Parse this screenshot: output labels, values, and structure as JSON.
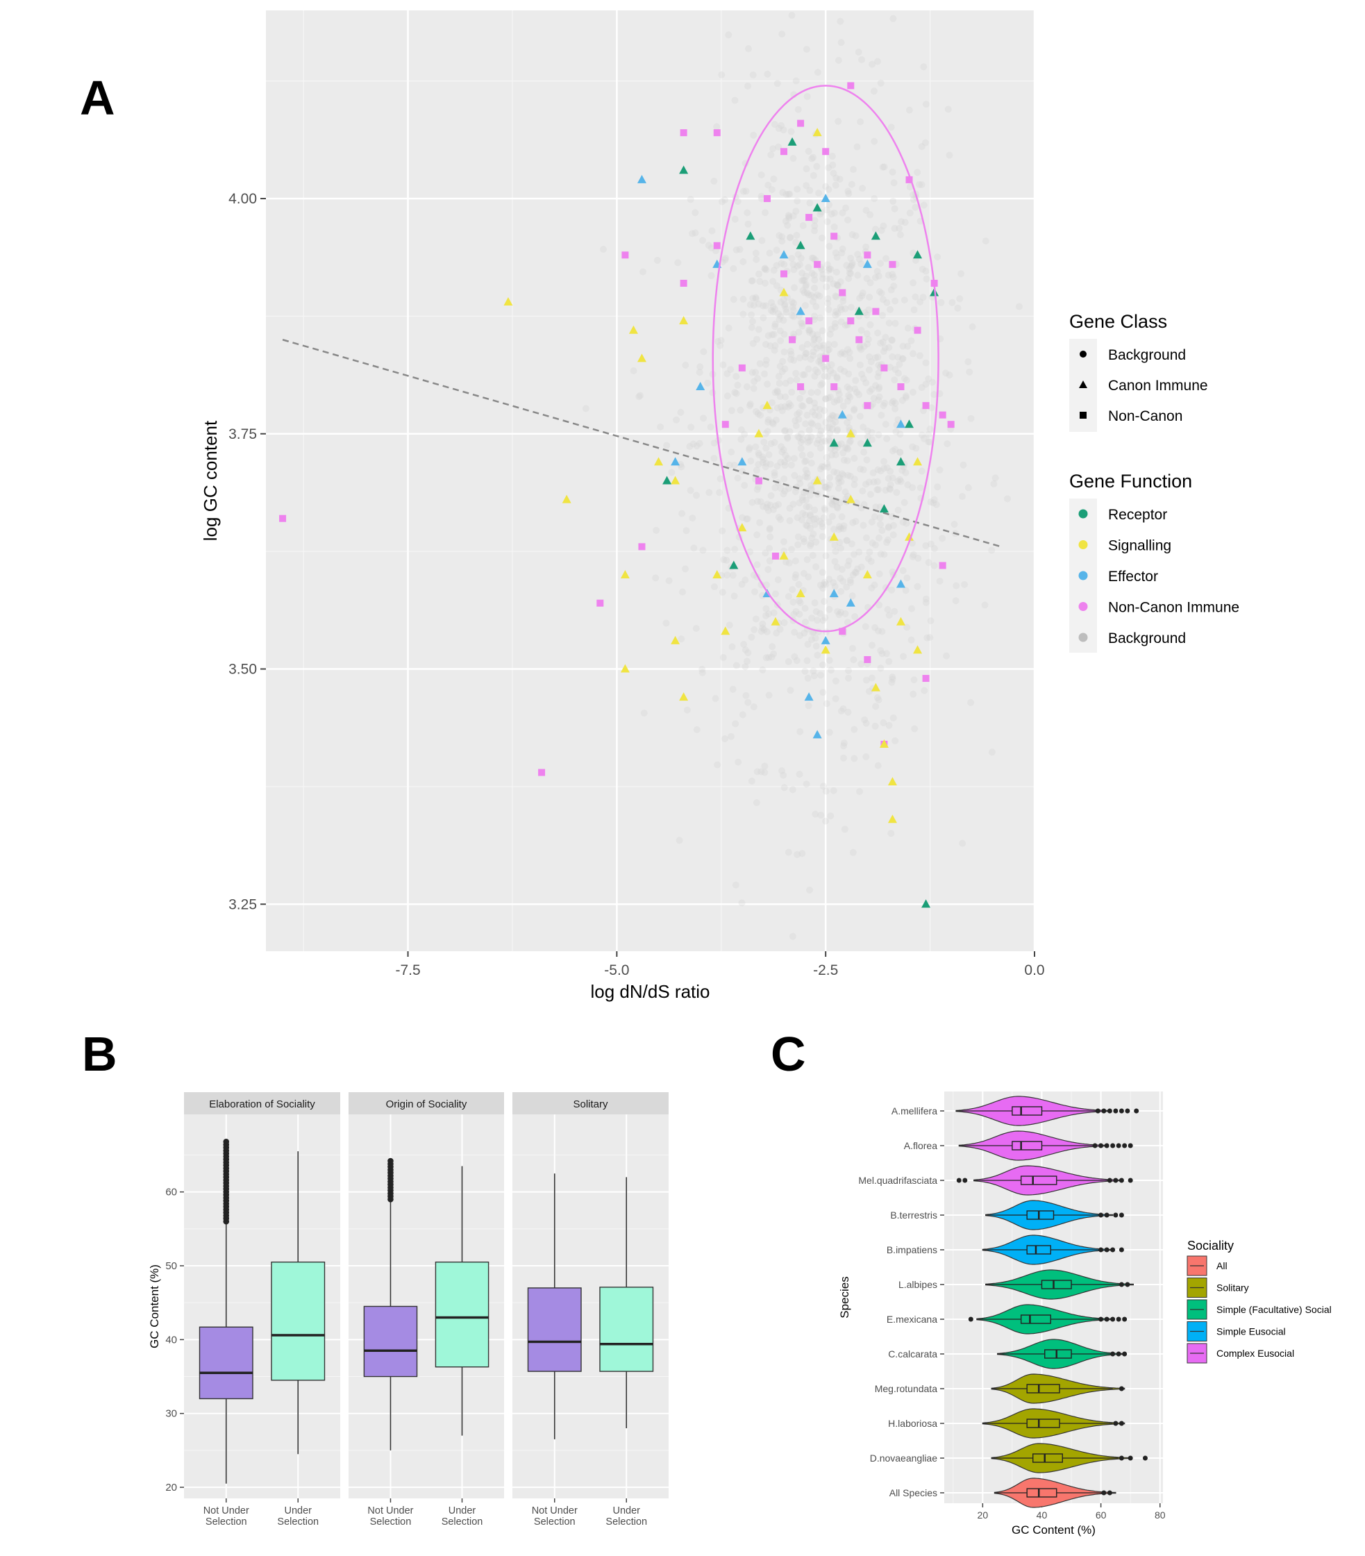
{
  "panels": {
    "A": {
      "letter": "A"
    },
    "B": {
      "letter": "B"
    },
    "C": {
      "letter": "C"
    }
  },
  "chart_data": [
    {
      "id": "A",
      "type": "scatter",
      "title": "",
      "xlabel": "log dN/dS ratio",
      "ylabel": "log GC content",
      "xlim": [
        -9.2,
        0.0
      ],
      "ylim": [
        3.2,
        4.2
      ],
      "x_ticks": [
        -7.5,
        -5.0,
        -2.5,
        0.0
      ],
      "x_tick_labels": [
        "-7.5",
        "-5.0",
        "-2.5",
        "0.0"
      ],
      "y_ticks": [
        3.25,
        3.5,
        3.75,
        4.0
      ],
      "y_tick_labels": [
        "3.25",
        "3.50",
        "3.75",
        "4.00"
      ],
      "grid": true,
      "legend_position": "right",
      "legends": [
        {
          "title": "Gene Class",
          "entries": [
            {
              "label": "Background",
              "shape": "circle"
            },
            {
              "label": "Canon Immune",
              "shape": "triangle"
            },
            {
              "label": "Non-Canon",
              "shape": "square"
            }
          ]
        },
        {
          "title": "Gene Function",
          "entries": [
            {
              "label": "Receptor",
              "color": "#1b9e77"
            },
            {
              "label": "Signalling",
              "color": "#f0e442"
            },
            {
              "label": "Effector",
              "color": "#56b4e9"
            },
            {
              "label": "Non-Canon Immune",
              "color": "#ee82ee"
            },
            {
              "label": "Background",
              "color": "#bdbdbd"
            }
          ]
        }
      ],
      "trend_line": {
        "style": "dashed",
        "x": [
          -9.0,
          -0.4
        ],
        "y": [
          3.85,
          3.63
        ]
      },
      "ellipse": {
        "center": [
          -2.5,
          3.83
        ],
        "semi_axis_x": 1.35,
        "semi_axis_y": 0.29,
        "color": "#ee82ee"
      },
      "background_cloud": {
        "center": [
          -2.55,
          3.75
        ],
        "spread": [
          0.75,
          0.17
        ],
        "count": 1400
      },
      "series": [
        {
          "class": "Non-Canon",
          "function": "Non-Canon Immune",
          "points": [
            [
              -9.0,
              3.66
            ],
            [
              -5.9,
              3.39
            ],
            [
              -5.2,
              3.57
            ],
            [
              -4.9,
              3.94
            ],
            [
              -4.7,
              3.63
            ],
            [
              -4.2,
              4.07
            ],
            [
              -4.2,
              3.91
            ],
            [
              -3.8,
              4.07
            ],
            [
              -3.8,
              3.95
            ],
            [
              -3.7,
              3.76
            ],
            [
              -3.5,
              3.82
            ],
            [
              -3.2,
              4.0
            ],
            [
              -3.0,
              4.05
            ],
            [
              -3.0,
              3.92
            ],
            [
              -2.9,
              3.85
            ],
            [
              -2.8,
              4.08
            ],
            [
              -2.7,
              3.98
            ],
            [
              -2.7,
              3.87
            ],
            [
              -2.6,
              3.93
            ],
            [
              -2.5,
              4.05
            ],
            [
              -2.5,
              3.83
            ],
            [
              -2.4,
              3.96
            ],
            [
              -2.3,
              3.9
            ],
            [
              -2.2,
              3.87
            ],
            [
              -2.2,
              4.12
            ],
            [
              -2.1,
              3.85
            ],
            [
              -2.0,
              3.94
            ],
            [
              -1.9,
              3.88
            ],
            [
              -1.8,
              3.82
            ],
            [
              -1.7,
              3.93
            ],
            [
              -1.6,
              3.8
            ],
            [
              -1.5,
              4.02
            ],
            [
              -1.4,
              3.86
            ],
            [
              -1.3,
              3.78
            ],
            [
              -1.2,
              3.91
            ],
            [
              -1.1,
              3.77
            ],
            [
              -1.0,
              3.76
            ],
            [
              -1.1,
              3.61
            ],
            [
              -1.3,
              3.49
            ],
            [
              -1.8,
              3.42
            ],
            [
              -2.0,
              3.51
            ],
            [
              -2.3,
              3.54
            ],
            [
              -3.1,
              3.62
            ],
            [
              -2.4,
              3.8
            ],
            [
              -2.0,
              3.78
            ],
            [
              -2.8,
              3.8
            ],
            [
              -3.3,
              3.7
            ]
          ]
        },
        {
          "class": "Canon Immune",
          "function": "Signalling",
          "points": [
            [
              -6.3,
              3.89
            ],
            [
              -5.6,
              3.68
            ],
            [
              -4.9,
              3.6
            ],
            [
              -4.9,
              3.5
            ],
            [
              -4.8,
              3.86
            ],
            [
              -4.7,
              3.83
            ],
            [
              -4.5,
              3.72
            ],
            [
              -4.3,
              3.7
            ],
            [
              -4.3,
              3.53
            ],
            [
              -4.2,
              3.87
            ],
            [
              -4.2,
              3.47
            ],
            [
              -3.8,
              3.6
            ],
            [
              -3.7,
              3.54
            ],
            [
              -3.5,
              3.65
            ],
            [
              -3.3,
              3.75
            ],
            [
              -3.1,
              3.55
            ],
            [
              -3.0,
              3.62
            ],
            [
              -2.8,
              3.58
            ],
            [
              -2.6,
              3.7
            ],
            [
              -2.5,
              3.52
            ],
            [
              -2.4,
              3.64
            ],
            [
              -2.2,
              3.68
            ],
            [
              -2.0,
              3.6
            ],
            [
              -1.9,
              3.48
            ],
            [
              -1.8,
              3.42
            ],
            [
              -1.7,
              3.38
            ],
            [
              -1.7,
              3.34
            ],
            [
              -1.6,
              3.55
            ],
            [
              -1.5,
              3.64
            ],
            [
              -1.4,
              3.72
            ],
            [
              -1.4,
              3.52
            ],
            [
              -2.6,
              4.07
            ],
            [
              -3.0,
              3.9
            ],
            [
              -3.2,
              3.78
            ],
            [
              -2.2,
              3.75
            ]
          ]
        },
        {
          "class": "Canon Immune",
          "function": "Receptor",
          "points": [
            [
              -4.2,
              4.03
            ],
            [
              -4.4,
              3.7
            ],
            [
              -3.6,
              3.61
            ],
            [
              -3.4,
              3.96
            ],
            [
              -2.9,
              4.06
            ],
            [
              -2.8,
              3.95
            ],
            [
              -2.6,
              3.99
            ],
            [
              -2.4,
              3.74
            ],
            [
              -2.1,
              3.88
            ],
            [
              -1.9,
              3.96
            ],
            [
              -1.8,
              3.67
            ],
            [
              -1.6,
              3.72
            ],
            [
              -1.5,
              3.76
            ],
            [
              -1.4,
              3.94
            ],
            [
              -1.2,
              3.9
            ],
            [
              -1.3,
              3.25
            ],
            [
              -2.0,
              3.74
            ]
          ]
        },
        {
          "class": "Canon Immune",
          "function": "Effector",
          "points": [
            [
              -4.7,
              4.02
            ],
            [
              -4.3,
              3.72
            ],
            [
              -4.0,
              3.8
            ],
            [
              -3.8,
              3.93
            ],
            [
              -3.5,
              3.72
            ],
            [
              -3.2,
              3.58
            ],
            [
              -3.0,
              3.94
            ],
            [
              -2.8,
              3.88
            ],
            [
              -2.7,
              3.47
            ],
            [
              -2.6,
              3.43
            ],
            [
              -2.5,
              4.0
            ],
            [
              -2.5,
              3.53
            ],
            [
              -2.4,
              3.58
            ],
            [
              -2.3,
              3.77
            ],
            [
              -2.2,
              3.57
            ],
            [
              -2.0,
              3.93
            ],
            [
              -1.6,
              3.59
            ],
            [
              -1.6,
              3.76
            ]
          ]
        }
      ]
    },
    {
      "id": "B",
      "type": "box",
      "title": "",
      "xlabel": "",
      "ylabel": "GC Content (%)",
      "ylim": [
        18.5,
        70.5
      ],
      "y_ticks": [
        20,
        30,
        40,
        50,
        60
      ],
      "y_tick_labels": [
        "20",
        "30",
        "40",
        "50",
        "60"
      ],
      "grid": true,
      "colors": {
        "Not Under Selection": "#a58be3",
        "Under Selection": "#9ff7d9"
      },
      "category_labels": [
        [
          "Not Under",
          "Selection"
        ],
        [
          "Under",
          "Selection"
        ]
      ],
      "facets": [
        {
          "name": "Elaboration of Sociality",
          "boxes": [
            {
              "category": "Not Under Selection",
              "whisker_low": 20.5,
              "q1": 32.0,
              "median": 35.5,
              "q3": 41.7,
              "whisker_high": 56.0,
              "outliers_range": [
                56.0,
                67.0
              ]
            },
            {
              "category": "Under Selection",
              "whisker_low": 24.5,
              "q1": 34.5,
              "median": 40.6,
              "q3": 50.5,
              "whisker_high": 65.5,
              "outliers_range": null
            }
          ]
        },
        {
          "name": "Origin of Sociality",
          "boxes": [
            {
              "category": "Not Under Selection",
              "whisker_low": 25.0,
              "q1": 35.0,
              "median": 38.5,
              "q3": 44.5,
              "whisker_high": 59.0,
              "outliers_range": [
                59.0,
                64.5
              ]
            },
            {
              "category": "Under Selection",
              "whisker_low": 27.0,
              "q1": 36.3,
              "median": 43.0,
              "q3": 50.5,
              "whisker_high": 63.5,
              "outliers_range": null
            }
          ]
        },
        {
          "name": "Solitary",
          "boxes": [
            {
              "category": "Not Under Selection",
              "whisker_low": 26.5,
              "q1": 35.7,
              "median": 39.7,
              "q3": 47.0,
              "whisker_high": 62.5,
              "outliers_range": null
            },
            {
              "category": "Under Selection",
              "whisker_low": 28.0,
              "q1": 35.7,
              "median": 39.4,
              "q3": 47.1,
              "whisker_high": 62.0,
              "outliers_range": null
            }
          ]
        }
      ]
    },
    {
      "id": "C",
      "type": "violin",
      "title": "",
      "xlabel": "GC Content (%)",
      "ylabel": "Species",
      "xlim": [
        7,
        81
      ],
      "x_ticks": [
        20,
        40,
        60,
        80
      ],
      "x_tick_labels": [
        "20",
        "40",
        "60",
        "80"
      ],
      "grid": true,
      "legend_position": "right",
      "legend": {
        "title": "Sociality",
        "entries": [
          {
            "label": "All",
            "color": "#f8766d"
          },
          {
            "label": "Solitary",
            "color": "#a3a500"
          },
          {
            "label": "Simple (Facultative) Social",
            "color": "#00bf7d"
          },
          {
            "label": "Simple Eusocial",
            "color": "#00b0f6"
          },
          {
            "label": "Complex Eusocial",
            "color": "#e76bf3"
          }
        ]
      },
      "species": [
        {
          "name": "A.mellifera",
          "sociality": "Complex Eusocial",
          "min": 11,
          "q1": 30,
          "median": 33,
          "q3": 40,
          "max": 59,
          "mode": 32,
          "outliers": [
            59,
            61,
            63,
            65,
            67,
            69,
            72
          ]
        },
        {
          "name": "A.florea",
          "sociality": "Complex Eusocial",
          "min": 12,
          "q1": 30,
          "median": 33,
          "q3": 40,
          "max": 58,
          "mode": 32,
          "outliers": [
            58,
            60,
            62,
            64,
            66,
            68,
            70
          ]
        },
        {
          "name": "Mel.quadrifasciata",
          "sociality": "Complex Eusocial",
          "min": 17,
          "q1": 33,
          "median": 37,
          "q3": 45,
          "max": 63,
          "mode": 35,
          "outliers": [
            12,
            14,
            63,
            65,
            67,
            70
          ]
        },
        {
          "name": "B.terrestris",
          "sociality": "Simple Eusocial",
          "min": 21,
          "q1": 35,
          "median": 39,
          "q3": 44,
          "max": 60,
          "mode": 37,
          "outliers": [
            60,
            62,
            65,
            67
          ]
        },
        {
          "name": "B.impatiens",
          "sociality": "Simple Eusocial",
          "min": 20,
          "q1": 35,
          "median": 38,
          "q3": 43,
          "max": 60,
          "mode": 37,
          "outliers": [
            60,
            62,
            64,
            67
          ]
        },
        {
          "name": "L.albipes",
          "sociality": "Simple (Facultative) Social",
          "min": 21,
          "q1": 40,
          "median": 44,
          "q3": 50,
          "max": 67,
          "mode": 43,
          "outliers": [
            67,
            69
          ]
        },
        {
          "name": "E.mexicana",
          "sociality": "Simple (Facultative) Social",
          "min": 18,
          "q1": 33,
          "median": 36,
          "q3": 43,
          "max": 60,
          "mode": 35,
          "outliers": [
            16,
            60,
            62,
            64,
            66,
            68
          ]
        },
        {
          "name": "C.calcarata",
          "sociality": "Simple (Facultative) Social",
          "min": 25,
          "q1": 41,
          "median": 45,
          "q3": 50,
          "max": 64,
          "mode": 44,
          "outliers": [
            64,
            66,
            68
          ]
        },
        {
          "name": "Meg.rotundata",
          "sociality": "Solitary",
          "min": 23,
          "q1": 35,
          "median": 39,
          "q3": 46,
          "max": 64,
          "mode": 37,
          "outliers": [
            67
          ]
        },
        {
          "name": "H.laboriosa",
          "sociality": "Solitary",
          "min": 20,
          "q1": 35,
          "median": 39,
          "q3": 46,
          "max": 64,
          "mode": 37,
          "outliers": [
            65,
            67
          ]
        },
        {
          "name": "D.novaeangliae",
          "sociality": "Solitary",
          "min": 23,
          "q1": 37,
          "median": 41,
          "q3": 47,
          "max": 66,
          "mode": 39,
          "outliers": [
            67,
            70,
            75
          ]
        },
        {
          "name": "All Species",
          "sociality": "All",
          "min": 24,
          "q1": 35,
          "median": 39,
          "q3": 45,
          "max": 61,
          "mode": 37,
          "outliers": [
            61,
            63
          ]
        }
      ]
    }
  ]
}
